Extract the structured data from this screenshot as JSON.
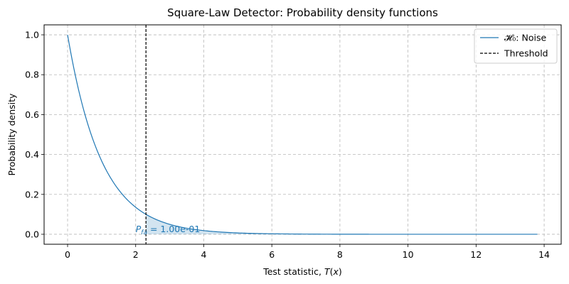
{
  "chart_data": {
    "type": "line",
    "title": "Square-Law Detector: Probability density functions",
    "xlabel": "Test statistic, T(x)",
    "ylabel": "Probability density",
    "xlim": [
      -0.69,
      14.5
    ],
    "ylim": [
      -0.05,
      1.05
    ],
    "xticks": [
      "0",
      "2",
      "4",
      "6",
      "8",
      "10",
      "12",
      "14"
    ],
    "yticks": [
      "0.0",
      "0.2",
      "0.4",
      "0.6",
      "0.8",
      "1.0"
    ],
    "grid": true,
    "legend_position": "top-right",
    "series": [
      {
        "name": "𝓗₀: Noise",
        "color": "#1f77b4",
        "function": "exp(-x)",
        "x_range": [
          0,
          13.8
        ]
      }
    ],
    "threshold": {
      "name": "Threshold",
      "x": 2.3026,
      "color": "#000000",
      "style": "dashed"
    },
    "shaded_region": {
      "from": 2.3026,
      "to": 13.8,
      "color": "#1f77b4"
    },
    "annotation": {
      "label": "P",
      "subscript": "fa",
      "value_text": " =  1.00e-01",
      "x": 2.0,
      "y": 0.025,
      "color": "#1f77b4"
    }
  }
}
